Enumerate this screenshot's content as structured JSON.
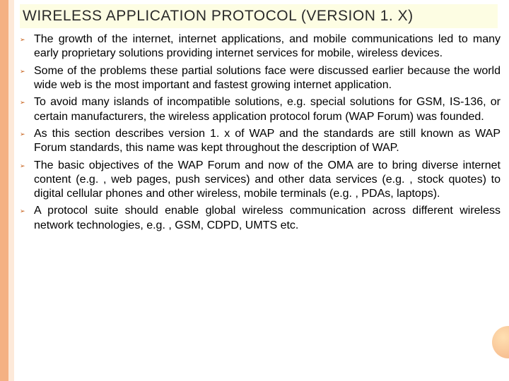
{
  "colors": {
    "left_stripe": "#f4b183",
    "left_inner": "#fde9d9",
    "title_bg": "#fdfde3",
    "title_text": "#2a2a2a",
    "bullet_marker": "#c55a11",
    "body_text": "#000000",
    "circle_gradient_from": "#ffe0b2",
    "circle_gradient_to": "#f4b183"
  },
  "typography": {
    "title_fontsize": 21,
    "body_fontsize": 16,
    "bullet_marker_fontsize": 9,
    "title_font": "Century Gothic",
    "body_font": "Arial"
  },
  "title": "WIRELESS APPLICATION PROTOCOL (VERSION 1. X)",
  "bullets": [
    "The growth of the internet, internet applications, and mobile communications led to many early proprietary solutions providing internet services for mobile, wireless devices.",
    "Some of the problems these partial solutions face were discussed earlier because the world wide web is the most important and fastest growing internet application.",
    "To avoid many islands of incompatible solutions, e.g. special solutions for GSM, IS-136, or certain manufacturers, the wireless application protocol forum (WAP Forum) was founded.",
    "As this section describes version 1. x of WAP and the standards are still known as WAP Forum standards, this name was kept throughout the description of WAP.",
    "The basic objectives of the WAP Forum and now of the OMA are to bring diverse internet content (e.g. , web pages, push services) and other data services (e.g. , stock quotes) to digital cellular phones and other wireless, mobile terminals (e.g. , PDAs, laptops).",
    "A protocol suite should enable global wireless communication across different wireless network technologies, e.g. , GSM, CDPD, UMTS etc."
  ],
  "bullet_glyph": "➢"
}
